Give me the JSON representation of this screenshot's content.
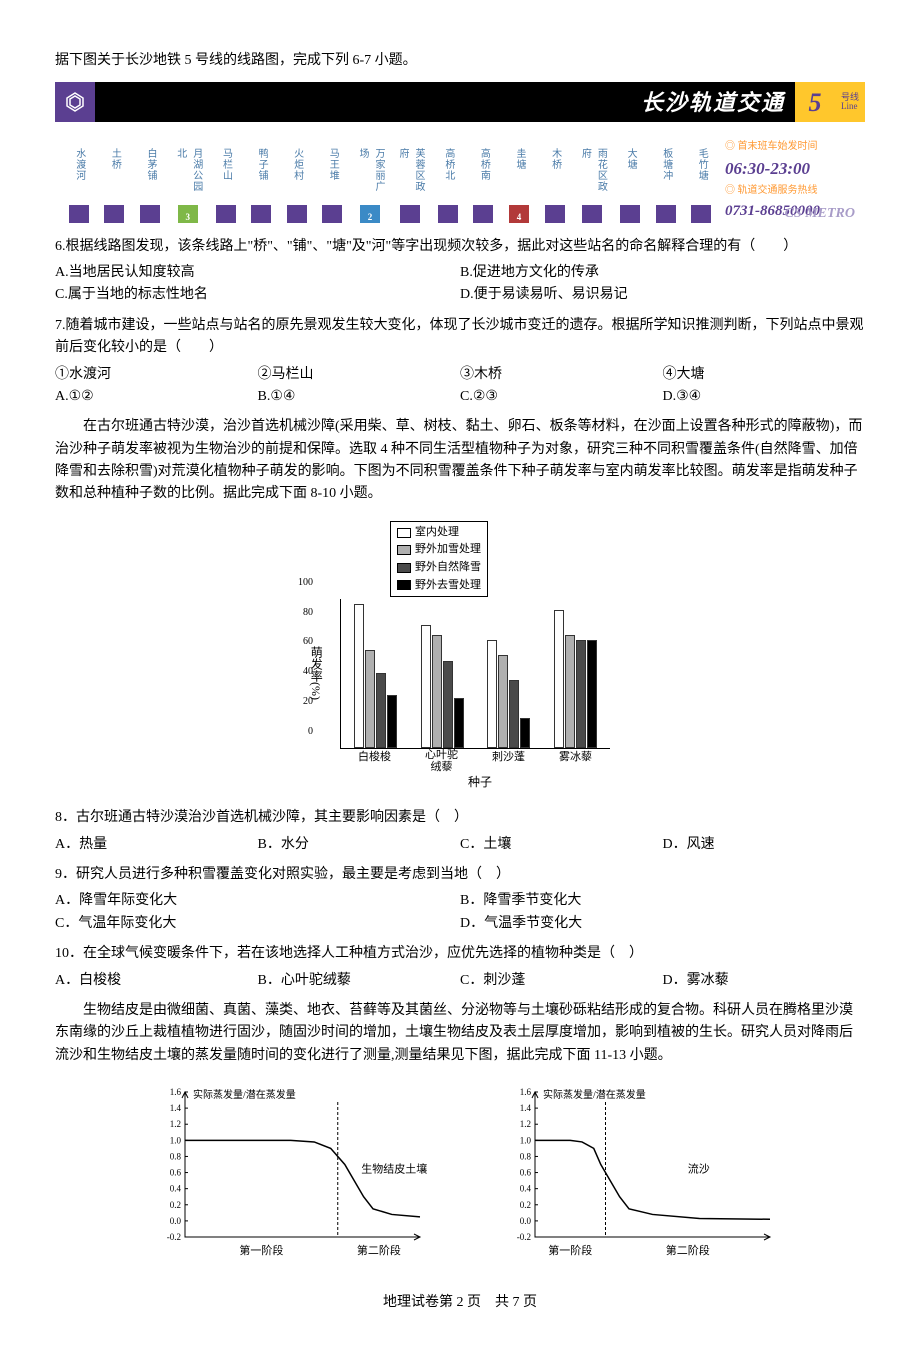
{
  "intro_text": "据下图关于长沙地铁 5 号线的线路图，完成下列 6-7 小题。",
  "metro": {
    "title": "长沙轨道交通",
    "line_number": "5",
    "line_label_cn": "号线",
    "line_label_en": "Line",
    "info_label1": "首末班车始发时间",
    "service_time": "06:30-23:00",
    "info_label2": "轨道交通服务热线",
    "phone": "0731-86850000",
    "brand": "CS METRO",
    "stations": [
      {
        "name": "水渡河",
        "transfer": null
      },
      {
        "name": "土桥",
        "transfer": null
      },
      {
        "name": "白茅铺",
        "transfer": null
      },
      {
        "name": "月湖公园北",
        "transfer": "3"
      },
      {
        "name": "马栏山",
        "transfer": null
      },
      {
        "name": "鸭子铺",
        "transfer": null
      },
      {
        "name": "火炬村",
        "transfer": null
      },
      {
        "name": "马王堆",
        "transfer": null
      },
      {
        "name": "万家丽广场",
        "transfer": "2"
      },
      {
        "name": "芙蓉区政府",
        "transfer": null
      },
      {
        "name": "高桥北",
        "transfer": null
      },
      {
        "name": "高桥南",
        "transfer": null
      },
      {
        "name": "圭塘",
        "transfer": "4"
      },
      {
        "name": "木桥",
        "transfer": null
      },
      {
        "name": "雨花区政府",
        "transfer": null
      },
      {
        "name": "大塘",
        "transfer": null
      },
      {
        "name": "板塘冲",
        "transfer": null
      },
      {
        "name": "毛竹塘",
        "transfer": null
      }
    ]
  },
  "q6": {
    "text": "6.根据线路图发现，该条线路上\"桥\"、\"铺\"、\"塘\"及\"河\"等字出现频次较多，据此对这些站名的命名解释合理的有（　　）",
    "opts": {
      "a": "A.当地居民认知度较高",
      "b": "B.促进地方文化的传承",
      "c": "C.属于当地的标志性地名",
      "d": "D.便于易读易听、易识易记"
    }
  },
  "q7": {
    "text": "7.随着城市建设，一些站点与站名的原先景观发生较大变化，体现了长沙城市变迁的遗存。根据所学知识推测判断，下列站点中景观前后变化较小的是（　　）",
    "items": {
      "i1": "①水渡河",
      "i2": "②马栏山",
      "i3": "③木桥",
      "i4": "④大塘"
    },
    "opts": {
      "a": "A.①②",
      "b": "B.①④",
      "c": "C.②③",
      "d": "D.③④"
    }
  },
  "passage2": "在古尔班通古特沙漠，治沙首选机械沙障(采用柴、草、树枝、黏土、卵石、板条等材料，在沙面上设置各种形式的障蔽物)，而治沙种子萌发率被视为生物治沙的前提和保障。选取 4 种不同生活型植物种子为对象，研究三种不同积雪覆盖条件(自然降雪、加倍降雪和去除积雪)对荒漠化植物种子萌发的影响。下图为不同积雪覆盖条件下种子萌发率与室内萌发率比较图。萌发率是指萌发种子数和总种植种子数的比例。据此完成下面 8-10 小题。",
  "bar_chart": {
    "y_label": "萌发率(%)",
    "y_max": 100,
    "y_ticks": [
      0,
      20,
      40,
      60,
      80,
      100
    ],
    "x_title": "种子",
    "legend": [
      "室内处理",
      "野外加雪处理",
      "野外自然降雪",
      "野外去雪处理"
    ],
    "legend_colors": [
      "#ffffff",
      "#b0b0b0",
      "#4a4a4a",
      "#000000"
    ],
    "categories": [
      "白梭梭",
      "心叶驼绒藜",
      "刺沙蓬",
      "雾冰藜"
    ],
    "series": [
      {
        "name": "室内处理",
        "color": "#ffffff",
        "values": [
          96,
          82,
          72,
          92
        ]
      },
      {
        "name": "野外加雪处理",
        "color": "#b0b0b0",
        "values": [
          65,
          75,
          62,
          75
        ]
      },
      {
        "name": "野外自然降雪",
        "color": "#4a4a4a",
        "values": [
          50,
          58,
          45,
          72
        ]
      },
      {
        "name": "野外去雪处理",
        "color": "#000000",
        "values": [
          35,
          33,
          20,
          72
        ]
      }
    ]
  },
  "q8": {
    "text": "8．古尔班通古特沙漠治沙首选机械沙障，其主要影响因素是（　）",
    "opts": {
      "a": "A．热量",
      "b": "B．水分",
      "c": "C．土壤",
      "d": "D．风速"
    }
  },
  "q9": {
    "text": "9．研究人员进行多种积雪覆盖变化对照实验，最主要是考虑到当地（　）",
    "opts": {
      "a": "A．降雪年际变化大",
      "b": "B．降雪季节变化大",
      "c": "C．气温年际变化大",
      "d": "D．气温季节变化大"
    }
  },
  "q10": {
    "text": "10．在全球气候变暖条件下，若在该地选择人工种植方式治沙，应优先选择的植物种类是（　）",
    "opts": {
      "a": "A．白梭梭",
      "b": "B．心叶驼绒藜",
      "c": "C．刺沙蓬",
      "d": "D．雾冰藜"
    }
  },
  "passage3": "生物结皮是由微细菌、真菌、藻类、地衣、苔藓等及其菌丝、分泌物等与土壤砂砾粘结形成的复合物。科研人员在腾格里沙漠东南缘的沙丘上裁植植物进行固沙，随固沙时间的增加，土壤生物结皮及表土层厚度增加，影响到植被的生长。研究人员对降雨后流沙和生物结皮土壤的蒸发量随时间的变化进行了测量,测量结果见下图，据此完成下面 11-13 小题。",
  "line_charts": {
    "y_label": "实际蒸发量/潜在蒸发量",
    "y_ticks": [
      -0.2,
      0.0,
      0.2,
      0.4,
      0.6,
      0.8,
      1.0,
      1.2,
      1.4,
      1.6
    ],
    "x_labels": [
      "第一阶段",
      "第二阶段"
    ],
    "left": {
      "title": "生物结皮土壤",
      "line_color": "#000000",
      "points": [
        [
          0,
          1.0
        ],
        [
          15,
          1.0
        ],
        [
          30,
          1.0
        ],
        [
          45,
          1.0
        ],
        [
          55,
          0.98
        ],
        [
          62,
          0.9
        ],
        [
          68,
          0.7
        ],
        [
          72,
          0.5
        ],
        [
          76,
          0.3
        ],
        [
          80,
          0.15
        ],
        [
          88,
          0.08
        ],
        [
          100,
          0.05
        ]
      ]
    },
    "right": {
      "title": "流沙",
      "line_color": "#000000",
      "points": [
        [
          0,
          1.0
        ],
        [
          8,
          1.0
        ],
        [
          15,
          1.0
        ],
        [
          20,
          0.98
        ],
        [
          25,
          0.9
        ],
        [
          28,
          0.7
        ],
        [
          32,
          0.5
        ],
        [
          36,
          0.3
        ],
        [
          40,
          0.15
        ],
        [
          50,
          0.08
        ],
        [
          70,
          0.03
        ],
        [
          100,
          0.02
        ]
      ]
    }
  },
  "footer": "地理试卷第 2 页　共 7 页"
}
